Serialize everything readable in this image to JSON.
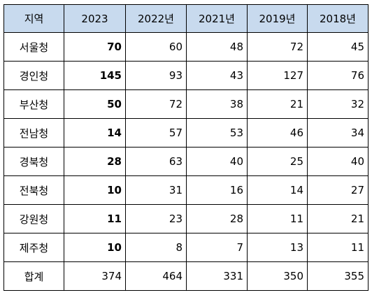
{
  "table": {
    "columns": [
      "지역",
      "2023",
      "2022년",
      "2021년",
      "2019년",
      "2018년"
    ],
    "rows": [
      {
        "region": "서울청",
        "values": [
          "70",
          "60",
          "48",
          "72",
          "45"
        ]
      },
      {
        "region": "경인청",
        "values": [
          "145",
          "93",
          "43",
          "127",
          "76"
        ]
      },
      {
        "region": "부산청",
        "values": [
          "50",
          "72",
          "38",
          "21",
          "32"
        ]
      },
      {
        "region": "전남청",
        "values": [
          "14",
          "57",
          "53",
          "46",
          "34"
        ]
      },
      {
        "region": "경북청",
        "values": [
          "28",
          "63",
          "40",
          "25",
          "40"
        ]
      },
      {
        "region": "전북청",
        "values": [
          "10",
          "31",
          "16",
          "14",
          "27"
        ]
      },
      {
        "region": "강원청",
        "values": [
          "11",
          "23",
          "28",
          "11",
          "21"
        ]
      },
      {
        "region": "제주청",
        "values": [
          "10",
          "8",
          "7",
          "13",
          "11"
        ]
      }
    ],
    "total": {
      "region": "합계",
      "values": [
        "374",
        "464",
        "331",
        "350",
        "355"
      ]
    }
  },
  "colors": {
    "header_bg": "#c8daee",
    "border": "#000000"
  }
}
